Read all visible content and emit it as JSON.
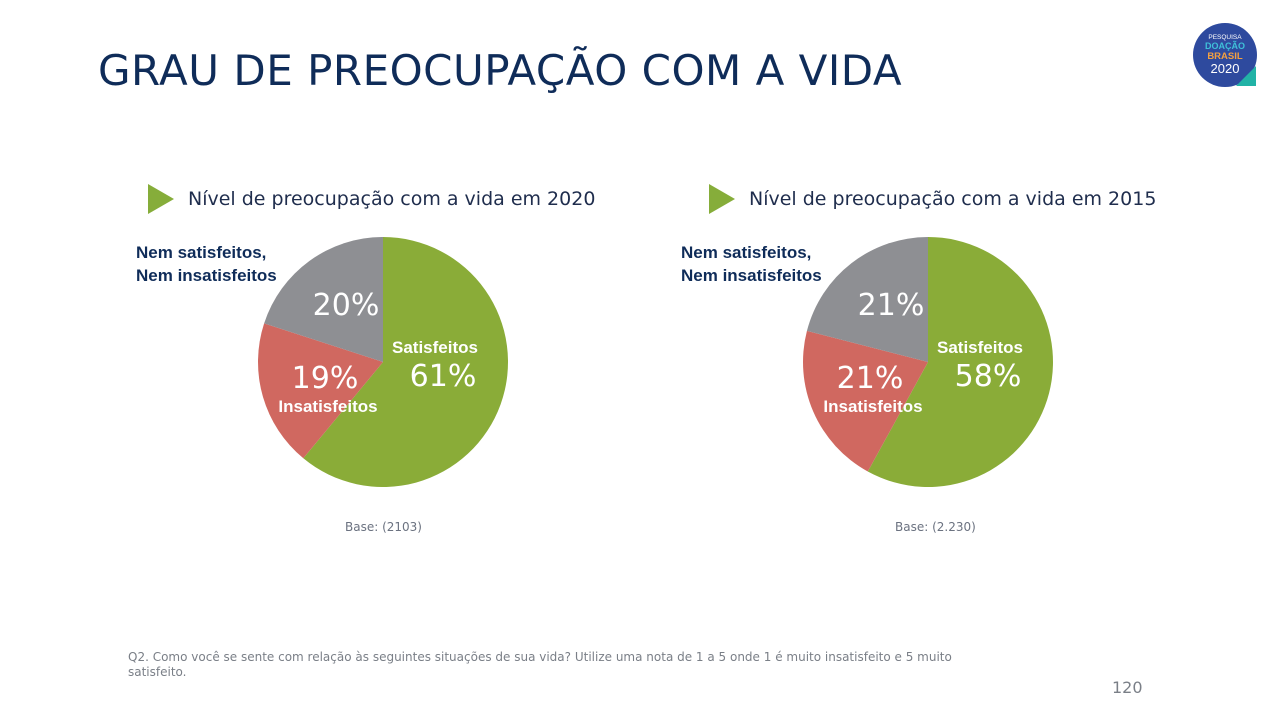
{
  "title": "GRAU DE PREOCUPAÇÃO COM A VIDA",
  "logo": {
    "line1": "PESQUISA",
    "line2": "DOAÇÃO",
    "line3": "BRASIL",
    "line4": "2020"
  },
  "chart_data": [
    {
      "type": "pie",
      "title": "Nível de preocupação com a vida em 2020",
      "categories": [
        "Satisfeitos",
        "Insatisfeitos",
        "Nem satisfeitos, Nem insatisfeitos"
      ],
      "values": [
        61,
        19,
        20
      ],
      "value_labels": [
        "61%",
        "19%",
        "20%"
      ],
      "colors": [
        "#8aac38",
        "#d06860",
        "#8e8f93"
      ],
      "outside_label": [
        "Nem satisfeitos,",
        "Nem insatisfeitos"
      ],
      "base": "Base:  (2103)"
    },
    {
      "type": "pie",
      "title": "Nível de preocupação com a vida em 2015",
      "categories": [
        "Satisfeitos",
        "Insatisfeitos",
        "Nem satisfeitos, Nem insatisfeitos"
      ],
      "values": [
        58,
        21,
        21
      ],
      "value_labels": [
        "58%",
        "21%",
        "21%"
      ],
      "colors": [
        "#8aac38",
        "#d06860",
        "#8e8f93"
      ],
      "outside_label": [
        "Nem satisfeitos,",
        "Nem insatisfeitos"
      ],
      "base": "Base:  (2.230)"
    }
  ],
  "footnote": "Q2. Como você se sente com relação às seguintes situações de sua vida? Utilize uma nota de 1 a 5 onde 1 é muito insatisfeito e 5 muito satisfeito.",
  "page_number": "120"
}
